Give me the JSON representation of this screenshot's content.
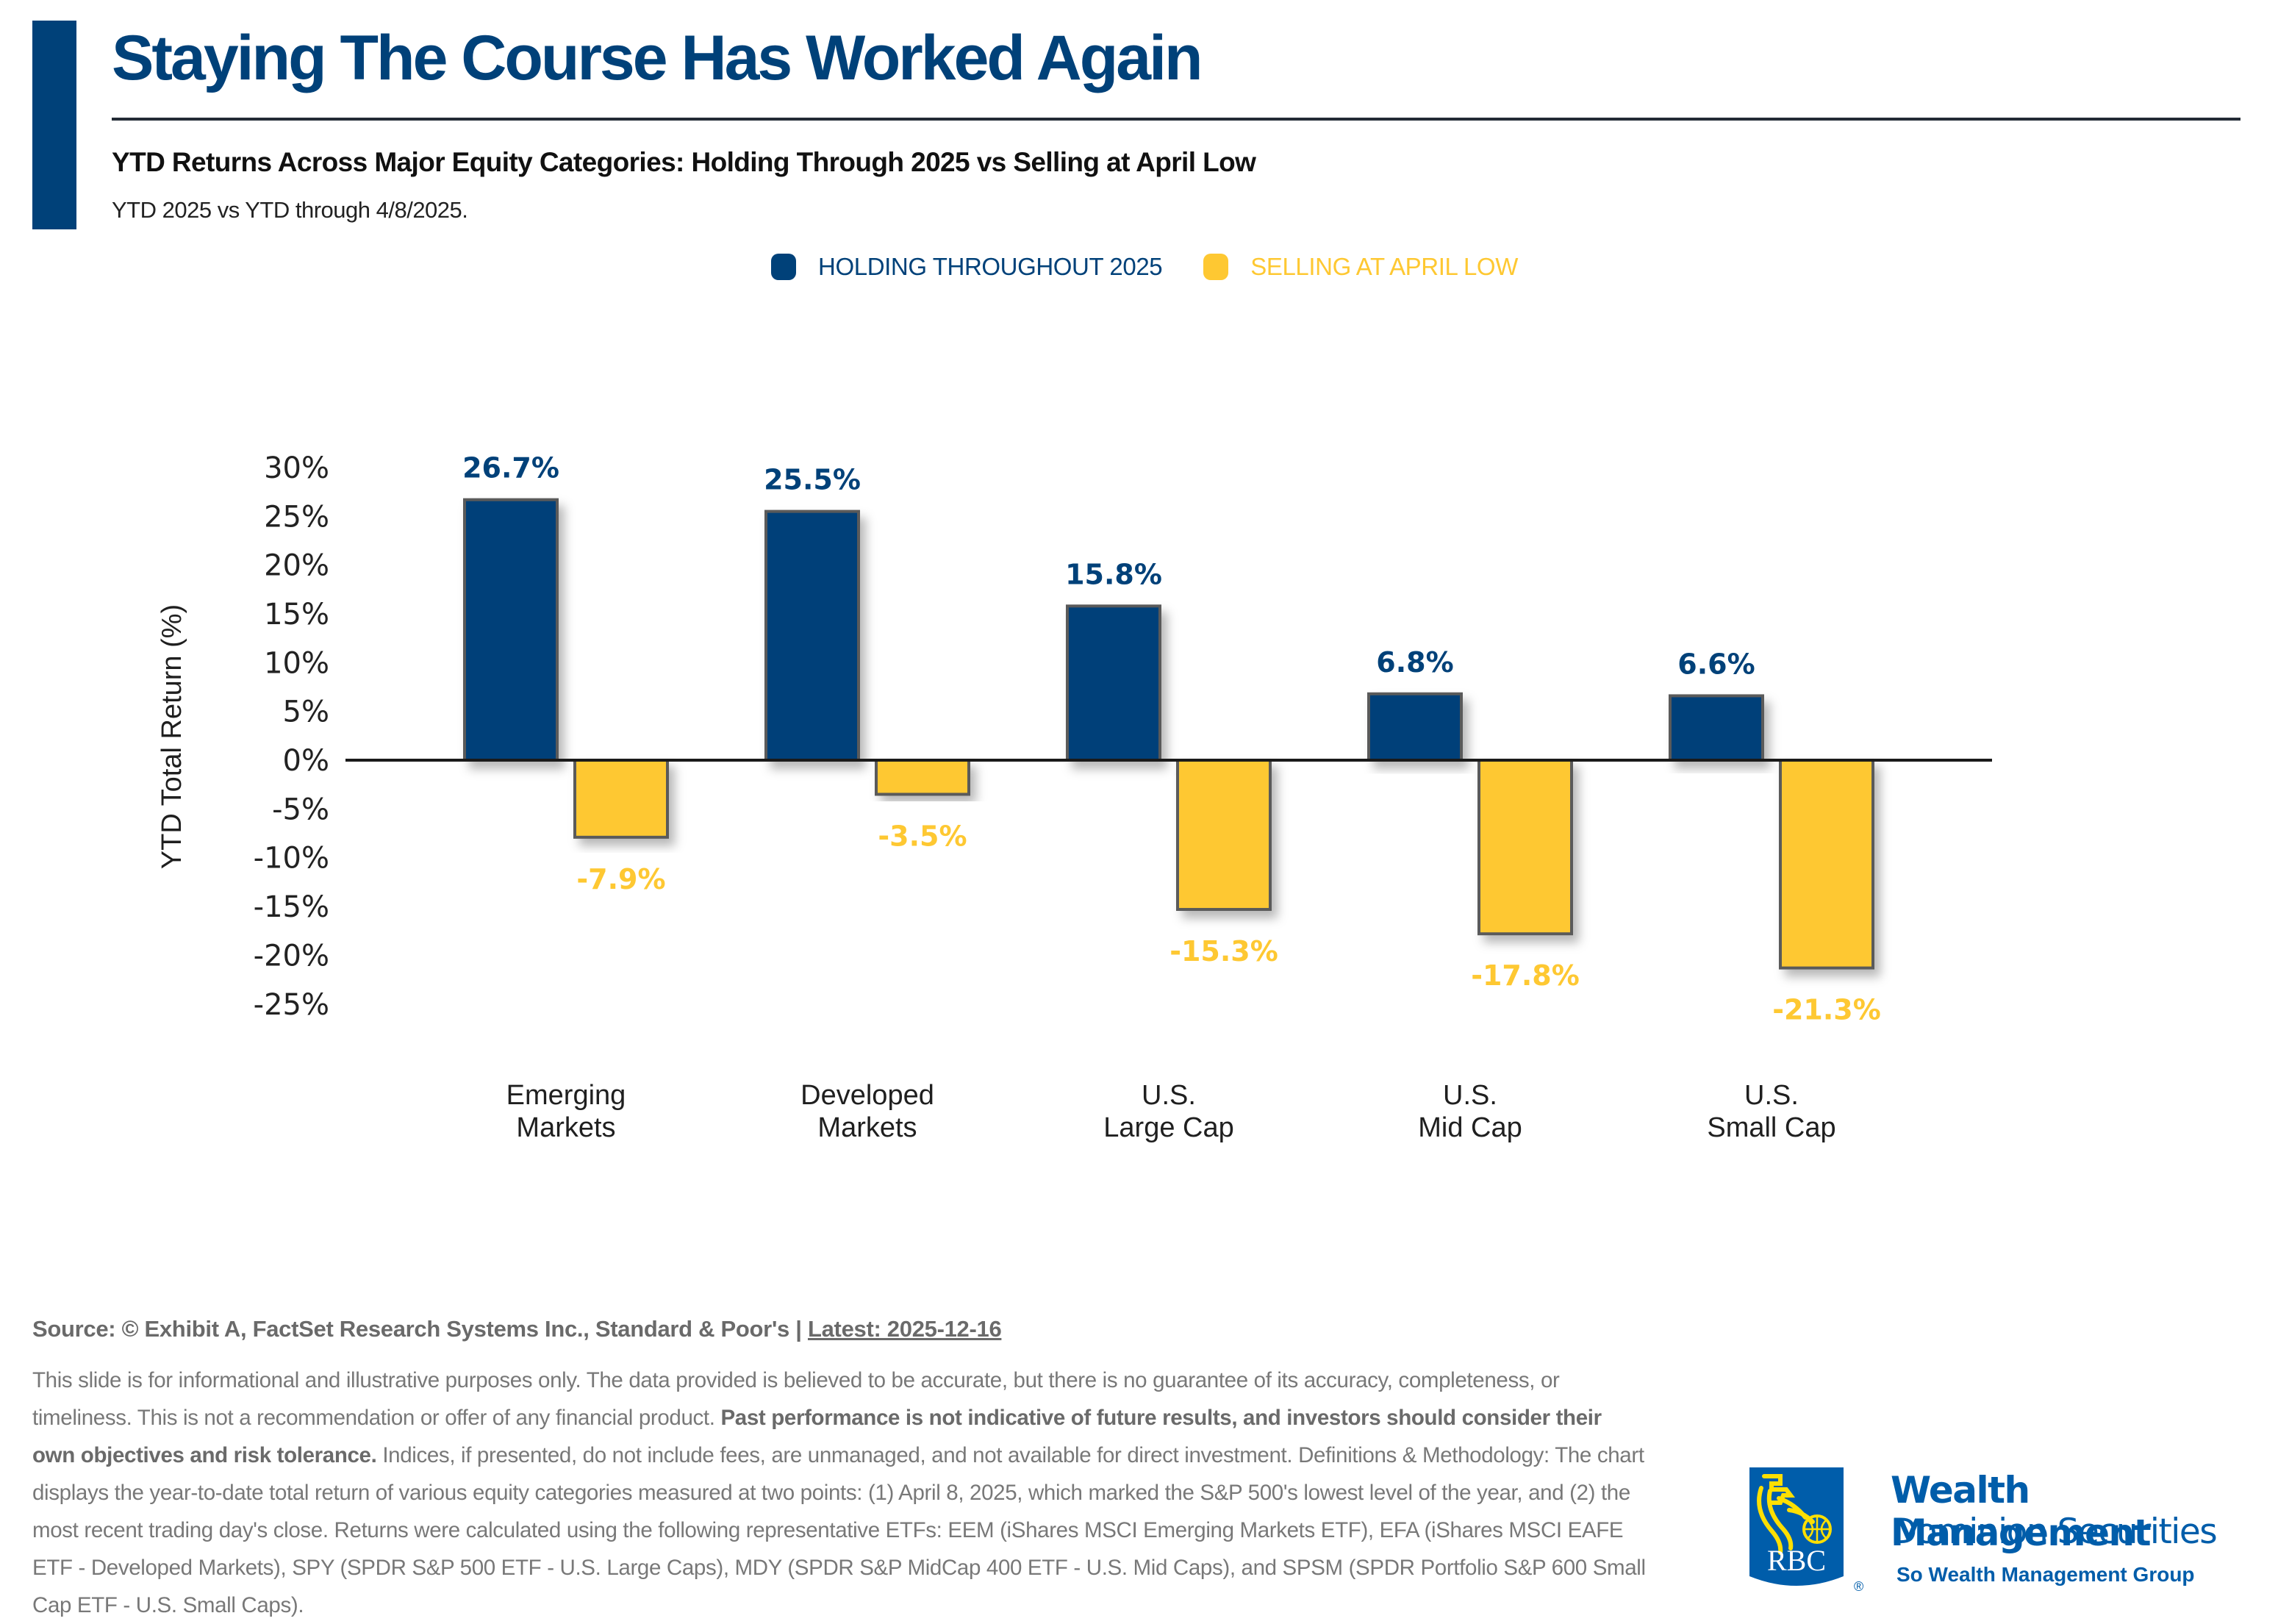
{
  "header": {
    "title": "Staying The Course Has Worked Again",
    "subtitle": "YTD Returns Across Major Equity Categories: Holding Through 2025 vs Selling at April Low",
    "note": "YTD 2025 vs YTD through 4/8/2025."
  },
  "colors": {
    "primary": "#004179",
    "secondary": "#FEC832",
    "bar_border": "#5a5a5a",
    "axis": "#1a1a1a"
  },
  "legend": [
    {
      "label": "HOLDING THROUGHOUT 2025",
      "color": "#004179"
    },
    {
      "label": "SELLING AT APRIL LOW",
      "color": "#FEC832"
    }
  ],
  "chart_data": {
    "type": "bar",
    "title": "YTD Returns Across Major Equity Categories: Holding Through 2025 vs Selling at April Low",
    "xlabel": "",
    "ylabel": "YTD Total Return (%)",
    "ylim": [
      -25,
      30
    ],
    "yticks": [
      30,
      25,
      20,
      15,
      10,
      5,
      0,
      -5,
      -10,
      -15,
      -20,
      -25
    ],
    "ytick_labels": [
      "30%",
      "25%",
      "20%",
      "15%",
      "10%",
      "5%",
      "0%",
      "-5%",
      "-10%",
      "-15%",
      "-20%",
      "-25%"
    ],
    "grid": false,
    "legend_position": "top-center",
    "categories": [
      [
        "Emerging",
        "Markets"
      ],
      [
        "Developed",
        "Markets"
      ],
      [
        "U.S.",
        "Large Cap"
      ],
      [
        "U.S.",
        "Mid Cap"
      ],
      [
        "U.S.",
        "Small Cap"
      ]
    ],
    "series": [
      {
        "name": "HOLDING THROUGHOUT 2025",
        "color": "#004179",
        "values": [
          26.7,
          25.5,
          15.8,
          6.8,
          6.6
        ],
        "labels": [
          "26.7%",
          "25.5%",
          "15.8%",
          "6.8%",
          "6.6%"
        ]
      },
      {
        "name": "SELLING AT APRIL LOW",
        "color": "#FEC832",
        "values": [
          -7.9,
          -3.5,
          -15.3,
          -17.8,
          -21.3
        ],
        "labels": [
          "-7.9%",
          "-3.5%",
          "-15.3%",
          "-17.8%",
          "-21.3%"
        ]
      }
    ]
  },
  "footer": {
    "source_prefix": "Source: © Exhibit A, FactSet Research Systems Inc., Standard & Poor's | ",
    "latest": "Latest: 2025-12-16",
    "disclaimer_part1": "This slide is for informational and illustrative purposes only. The data provided is believed to be accurate, but there is no guarantee of its accuracy, completeness, or timeliness. This is not a recommendation or offer of any financial product. ",
    "disclaimer_bold": "Past performance is not indicative of future results, and investors should consider their own objectives and risk tolerance.",
    "disclaimer_part2": " Indices, if presented, do not include fees, are unmanaged, and not available for direct investment. Definitions & Methodology: The chart displays the year-to-date total return of various equity categories measured at two points: (1) April 8, 2025, which marked the S&P 500's lowest level of the year, and (2) the most recent trading day's close. Returns were calculated using the following representative ETFs: EEM (iShares MSCI Emerging Markets ETF), EFA (iShares MSCI EAFE ETF - Developed Markets), SPY (SPDR S&P 500 ETF - U.S. Large Caps), MDY (SPDR S&P MidCap 400 ETF - U.S. Mid Caps), and SPSM (SPDR Portfolio S&P 600 Small Cap ETF - U.S. Small Caps)."
  },
  "brand": {
    "logo_text": "RBC",
    "line1": "Wealth Management",
    "line2": "Dominion Securities",
    "line3": "So Wealth Management Group",
    "reg_mark": "®"
  }
}
